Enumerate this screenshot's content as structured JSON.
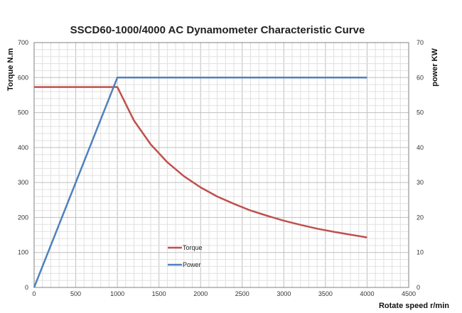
{
  "chart_data": {
    "type": "line",
    "title": "SSCD60-1000/4000 AC Dynamometer Characteristic Curve",
    "xlabel": "Rotate speed r/min",
    "ylabel_left": "Torque N.m",
    "ylabel_right": "power KW",
    "xlim": [
      0,
      4500
    ],
    "ylim_left": [
      0,
      700
    ],
    "ylim_right": [
      0,
      70
    ],
    "x_ticks": [
      "0",
      "500",
      "1000",
      "1500",
      "2000",
      "2500",
      "3000",
      "3500",
      "4000",
      "4500"
    ],
    "y_left_ticks": [
      "0",
      "100",
      "200",
      "300",
      "400",
      "500",
      "600",
      "700"
    ],
    "y_right_ticks": [
      "0",
      "10",
      "20",
      "30",
      "40",
      "50",
      "60",
      "70"
    ],
    "grid": true,
    "legend_position": "lower-left inside plot",
    "series": [
      {
        "name": "Torque",
        "axis": "left",
        "color": "#c0504d",
        "x": [
          0,
          1000,
          1200,
          1400,
          1600,
          1800,
          2000,
          2200,
          2400,
          2600,
          2800,
          3000,
          3200,
          3400,
          3600,
          3800,
          4000
        ],
        "values": [
          573,
          573,
          477,
          409,
          358,
          318,
          286,
          260,
          239,
          220,
          205,
          191,
          179,
          168,
          159,
          151,
          143
        ]
      },
      {
        "name": "Power",
        "axis": "right",
        "color": "#4f81bd",
        "x": [
          0,
          1000,
          4000
        ],
        "values": [
          0,
          60,
          60
        ]
      }
    ]
  }
}
